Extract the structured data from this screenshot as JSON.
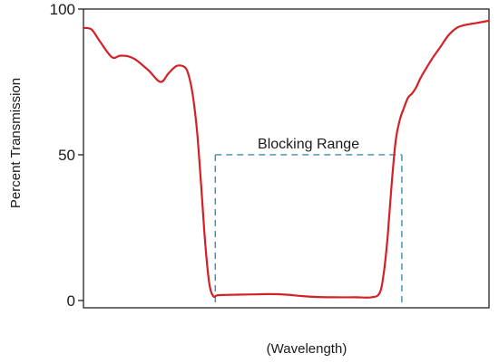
{
  "chart_data": {
    "type": "line",
    "title": "",
    "xlabel": "(Wavelength)",
    "ylabel": "Percent Transmission",
    "xlim": [
      0,
      100
    ],
    "ylim": [
      -2.5,
      100
    ],
    "y_ticks": [
      0,
      50,
      100
    ],
    "y_tick_labels": [
      "0",
      "50",
      "100"
    ],
    "x_tick_labels": [],
    "grid": false,
    "series": [
      {
        "color": "#d42027",
        "x": [
          0,
          2,
          4,
          7,
          9,
          11,
          13,
          16,
          19,
          21,
          23,
          25,
          26,
          27,
          28,
          29,
          30,
          31,
          32,
          33,
          35,
          38,
          42,
          46,
          50,
          54,
          58,
          62,
          67,
          71,
          73,
          74,
          75,
          76,
          77,
          78,
          79,
          80,
          81,
          82,
          83,
          84,
          86,
          88,
          90,
          92,
          94,
          96,
          98,
          100
        ],
        "y": [
          93.5,
          93,
          89,
          83.5,
          84,
          83.8,
          82.5,
          79,
          75,
          78,
          80.5,
          80,
          77,
          70,
          58,
          40,
          20,
          6,
          1.5,
          1.8,
          1.9,
          2.0,
          2.1,
          2.2,
          2.0,
          1.5,
          1.2,
          1.1,
          1.1,
          1.1,
          2.5,
          9,
          22,
          40,
          55,
          62,
          66,
          69.5,
          71,
          73,
          76,
          78.5,
          83,
          87,
          91,
          93.5,
          94.5,
          95,
          95.5,
          96
        ]
      }
    ],
    "blocking_range": {
      "label": "Blocking Range",
      "x_start": 32.5,
      "x_end": 78.5,
      "level": 50,
      "color": "#3a8fb5"
    }
  }
}
